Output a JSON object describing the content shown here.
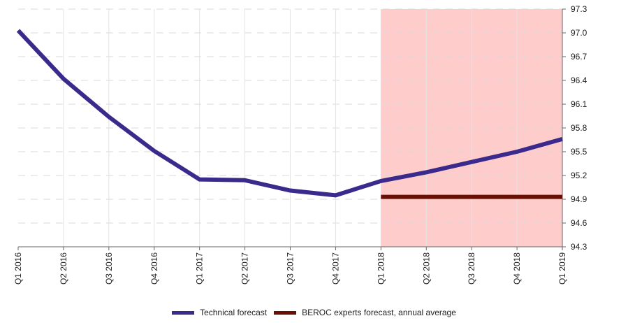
{
  "chart_data": {
    "type": "line",
    "title": "",
    "xlabel": "",
    "ylabel": "",
    "categories": [
      "Q1 2016",
      "Q2 2016",
      "Q3 2016",
      "Q4 2016",
      "Q1 2017",
      "Q2 2017",
      "Q3 2017",
      "Q4 2017",
      "Q1 2018",
      "Q2 2018",
      "Q3 2018",
      "Q4 2018",
      "Q1 2019"
    ],
    "ylim": [
      94.3,
      97.3
    ],
    "y_ticks": [
      "94.3",
      "94.6",
      "94.9",
      "95.2",
      "95.5",
      "95.8",
      "96.1",
      "96.4",
      "96.7",
      "97.0",
      "97.3"
    ],
    "y_axis_side": "right",
    "grid": true,
    "legend_position": "bottom",
    "shaded_region": {
      "from": "Q1 2018",
      "to": "Q1 2019",
      "color": "#ffcccc"
    },
    "series": [
      {
        "name": "Technical forecast",
        "color": "#3a2a8c",
        "values": [
          97.03,
          96.42,
          95.94,
          95.51,
          95.15,
          95.14,
          95.01,
          94.95,
          95.13,
          95.24,
          95.37,
          95.5,
          95.66
        ]
      },
      {
        "name": "BEROC experts forecast, annual average",
        "color": "#6b0f05",
        "values": [
          null,
          null,
          null,
          null,
          null,
          null,
          null,
          null,
          94.93,
          94.93,
          94.93,
          94.93,
          94.93
        ]
      }
    ]
  }
}
